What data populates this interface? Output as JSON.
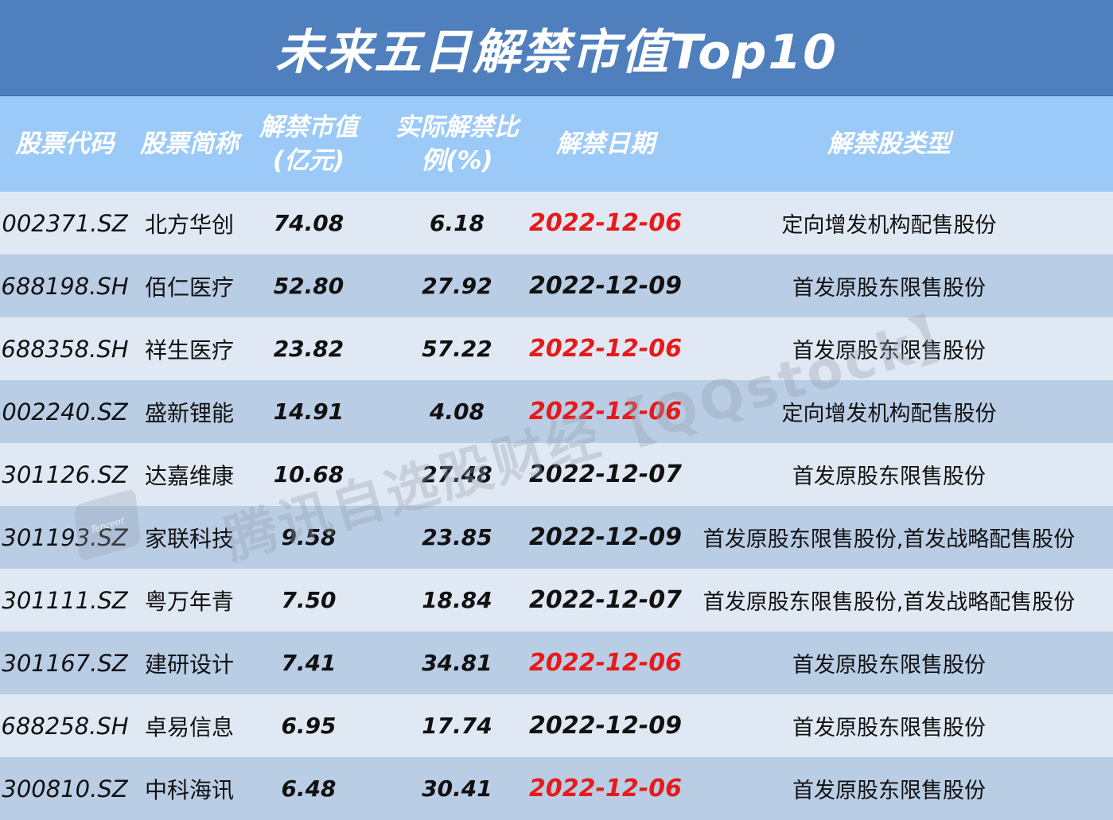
{
  "title": "未来五日解禁市值Top10",
  "headers": {
    "code": "股票代码",
    "name": "股票简称",
    "value_l1": "解禁市值",
    "value_l2": "(亿元)",
    "ratio_l1": "实际解禁比",
    "ratio_l2": "例(%)",
    "date": "解禁日期",
    "type": "解禁股类型"
  },
  "rows": [
    {
      "code": "002371.SZ",
      "name": "北方华创",
      "value": "74.08",
      "ratio": "6.18",
      "date": "2022-12-06",
      "type": "定向增发机构配售股份"
    },
    {
      "code": "688198.SH",
      "name": "佰仁医疗",
      "value": "52.80",
      "ratio": "27.92",
      "date": "2022-12-09",
      "type": "首发原股东限售股份"
    },
    {
      "code": "688358.SH",
      "name": "祥生医疗",
      "value": "23.82",
      "ratio": "57.22",
      "date": "2022-12-06",
      "type": "首发原股东限售股份"
    },
    {
      "code": "002240.SZ",
      "name": "盛新锂能",
      "value": "14.91",
      "ratio": "4.08",
      "date": "2022-12-06",
      "type": "定向增发机构配售股份"
    },
    {
      "code": "301126.SZ",
      "name": "达嘉维康",
      "value": "10.68",
      "ratio": "27.48",
      "date": "2022-12-07",
      "type": "首发原股东限售股份"
    },
    {
      "code": "301193.SZ",
      "name": "家联科技",
      "value": "9.58",
      "ratio": "23.85",
      "date": "2022-12-09",
      "type": "首发原股东限售股份,首发战略配售股份"
    },
    {
      "code": "301111.SZ",
      "name": "粤万年青",
      "value": "7.50",
      "ratio": "18.84",
      "date": "2022-12-07",
      "type": "首发原股东限售股份,首发战略配售股份"
    },
    {
      "code": "301167.SZ",
      "name": "建研设计",
      "value": "7.41",
      "ratio": "34.81",
      "date": "2022-12-06",
      "type": "首发原股东限售股份"
    },
    {
      "code": "688258.SH",
      "name": "卓易信息",
      "value": "6.95",
      "ratio": "17.74",
      "date": "2022-12-09",
      "type": "首发原股东限售股份"
    },
    {
      "code": "300810.SZ",
      "name": "中科海讯",
      "value": "6.48",
      "ratio": "30.41",
      "date": "2022-12-06",
      "type": "首发原股东限售股份"
    }
  ],
  "highlight_date": "2022-12-06",
  "colors": {
    "title_bg": "#4f7fbd",
    "header_bg": "#9ccaf8",
    "row_light": "#e0e9f3",
    "row_dark": "#b9cde5",
    "highlight_date": "#e81919"
  },
  "watermark": {
    "text": "腾讯自选股财经【QQstock】",
    "logo_text": "Tencent"
  }
}
